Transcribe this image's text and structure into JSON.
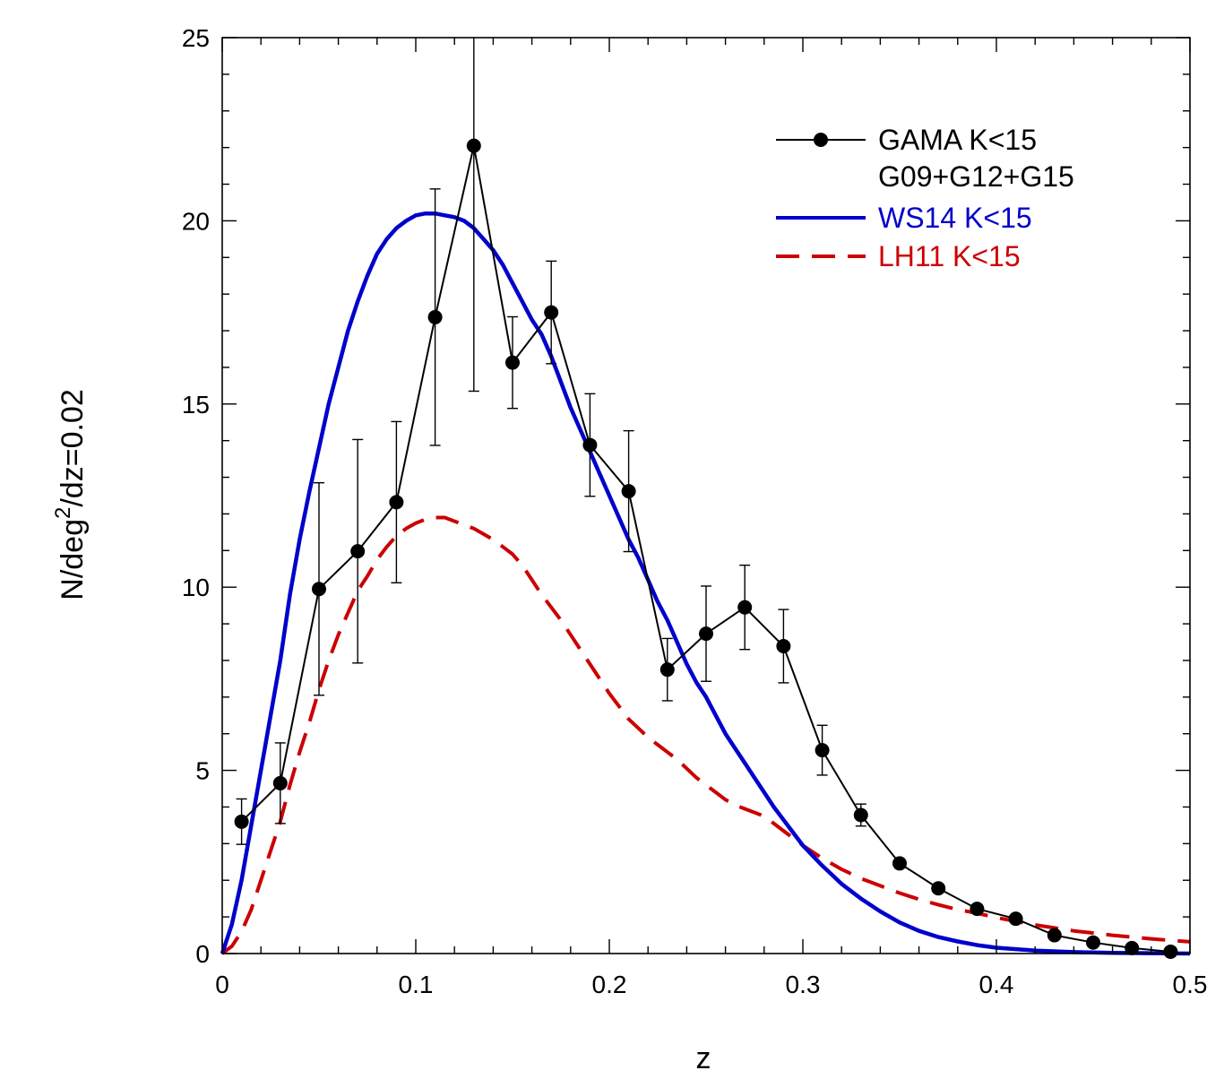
{
  "chart_data": {
    "type": "line",
    "title": "",
    "xlabel": "z",
    "ylabel_prefix": "N/deg",
    "ylabel_superscript": "2",
    "ylabel_suffix": "/dz=0.02",
    "xlim": [
      0,
      0.5
    ],
    "ylim": [
      0,
      25
    ],
    "x_ticks": [
      0,
      0.1,
      0.2,
      0.3,
      0.4,
      0.5
    ],
    "x_tick_labels": [
      "0",
      "0.1",
      "0.2",
      "0.3",
      "0.4",
      "0.5"
    ],
    "x_minor_step": 0.02,
    "y_ticks": [
      0,
      5,
      10,
      15,
      20,
      25
    ],
    "y_tick_labels": [
      "0",
      "5",
      "10",
      "15",
      "20",
      "25"
    ],
    "y_minor_step": 1,
    "grid": false,
    "legend_position": "top-right",
    "series": [
      {
        "name": "GAMA K<15",
        "name_line2": "G09+G12+G15",
        "color": "#000000",
        "style": "solid-with-markers",
        "x": [
          0.01,
          0.03,
          0.05,
          0.07,
          0.09,
          0.11,
          0.13,
          0.15,
          0.17,
          0.19,
          0.21,
          0.23,
          0.25,
          0.27,
          0.29,
          0.31,
          0.33,
          0.35,
          0.37,
          0.39,
          0.41,
          0.43,
          0.45,
          0.47,
          0.49
        ],
        "y": [
          3.6,
          4.65,
          9.95,
          10.98,
          12.32,
          17.37,
          22.05,
          16.13,
          17.5,
          13.88,
          12.62,
          7.75,
          8.73,
          9.45,
          8.39,
          5.55,
          3.78,
          2.46,
          1.78,
          1.22,
          0.95,
          0.5,
          0.3,
          0.15,
          0.05
        ],
        "err": [
          0.62,
          1.1,
          2.9,
          3.05,
          2.2,
          3.5,
          6.7,
          1.25,
          1.4,
          1.4,
          1.65,
          0.85,
          1.3,
          1.15,
          1.0,
          0.68,
          0.3,
          0.12,
          0.08,
          0.08,
          0.08,
          0.05,
          0.04,
          0.03,
          0.02
        ]
      },
      {
        "name": "WS14 K<15",
        "color": "#0000cc",
        "style": "solid",
        "x": [
          0.0,
          0.005,
          0.01,
          0.015,
          0.02,
          0.025,
          0.03,
          0.035,
          0.04,
          0.045,
          0.05,
          0.055,
          0.06,
          0.065,
          0.07,
          0.075,
          0.08,
          0.085,
          0.09,
          0.095,
          0.1,
          0.105,
          0.11,
          0.115,
          0.12,
          0.125,
          0.13,
          0.135,
          0.14,
          0.145,
          0.15,
          0.155,
          0.16,
          0.165,
          0.17,
          0.175,
          0.18,
          0.185,
          0.19,
          0.195,
          0.2,
          0.205,
          0.21,
          0.215,
          0.22,
          0.225,
          0.23,
          0.235,
          0.24,
          0.245,
          0.25,
          0.255,
          0.26,
          0.265,
          0.27,
          0.275,
          0.28,
          0.285,
          0.29,
          0.295,
          0.3,
          0.31,
          0.32,
          0.33,
          0.34,
          0.35,
          0.36,
          0.37,
          0.38,
          0.39,
          0.4,
          0.42,
          0.44,
          0.46,
          0.48,
          0.5
        ],
        "y": [
          0.0,
          0.8,
          2.0,
          3.5,
          5.0,
          6.5,
          8.0,
          9.8,
          11.3,
          12.6,
          13.8,
          15.0,
          16.0,
          17.0,
          17.8,
          18.5,
          19.1,
          19.5,
          19.8,
          20.0,
          20.15,
          20.2,
          20.2,
          20.15,
          20.1,
          20.0,
          19.8,
          19.5,
          19.2,
          18.8,
          18.3,
          17.8,
          17.3,
          16.9,
          16.3,
          15.6,
          14.9,
          14.3,
          13.7,
          13.1,
          12.5,
          11.9,
          11.3,
          10.8,
          10.2,
          9.6,
          9.1,
          8.5,
          7.9,
          7.4,
          7.0,
          6.5,
          6.0,
          5.6,
          5.2,
          4.8,
          4.4,
          4.0,
          3.65,
          3.3,
          2.95,
          2.4,
          1.9,
          1.5,
          1.15,
          0.85,
          0.62,
          0.45,
          0.33,
          0.23,
          0.16,
          0.08,
          0.04,
          0.02,
          0.01,
          0.0
        ]
      },
      {
        "name": "LH11 K<15",
        "color": "#cc0000",
        "style": "dashed",
        "x": [
          0.0,
          0.005,
          0.01,
          0.015,
          0.02,
          0.025,
          0.03,
          0.035,
          0.04,
          0.045,
          0.05,
          0.055,
          0.06,
          0.065,
          0.07,
          0.075,
          0.08,
          0.085,
          0.09,
          0.095,
          0.1,
          0.105,
          0.11,
          0.115,
          0.12,
          0.125,
          0.13,
          0.135,
          0.14,
          0.145,
          0.15,
          0.155,
          0.16,
          0.165,
          0.17,
          0.175,
          0.18,
          0.185,
          0.19,
          0.195,
          0.2,
          0.205,
          0.21,
          0.215,
          0.22,
          0.225,
          0.23,
          0.235,
          0.24,
          0.245,
          0.25,
          0.255,
          0.26,
          0.265,
          0.27,
          0.275,
          0.28,
          0.285,
          0.29,
          0.295,
          0.3,
          0.31,
          0.32,
          0.33,
          0.34,
          0.35,
          0.36,
          0.37,
          0.38,
          0.39,
          0.4,
          0.41,
          0.42,
          0.43,
          0.44,
          0.45,
          0.46,
          0.47,
          0.48,
          0.49,
          0.5
        ],
        "y": [
          0.0,
          0.2,
          0.6,
          1.2,
          2.0,
          2.8,
          3.6,
          4.6,
          5.5,
          6.3,
          7.2,
          8.0,
          8.7,
          9.3,
          9.9,
          10.3,
          10.75,
          11.1,
          11.4,
          11.6,
          11.75,
          11.85,
          11.9,
          11.9,
          11.8,
          11.7,
          11.6,
          11.45,
          11.3,
          11.1,
          10.9,
          10.6,
          10.2,
          9.8,
          9.45,
          9.1,
          8.7,
          8.3,
          7.9,
          7.5,
          7.1,
          6.75,
          6.4,
          6.15,
          5.9,
          5.7,
          5.5,
          5.3,
          5.05,
          4.8,
          4.6,
          4.4,
          4.2,
          4.05,
          3.95,
          3.85,
          3.75,
          3.55,
          3.35,
          3.15,
          2.95,
          2.6,
          2.3,
          2.05,
          1.85,
          1.65,
          1.48,
          1.33,
          1.2,
          1.1,
          0.98,
          0.88,
          0.78,
          0.7,
          0.62,
          0.56,
          0.5,
          0.45,
          0.4,
          0.36,
          0.32
        ]
      }
    ]
  }
}
